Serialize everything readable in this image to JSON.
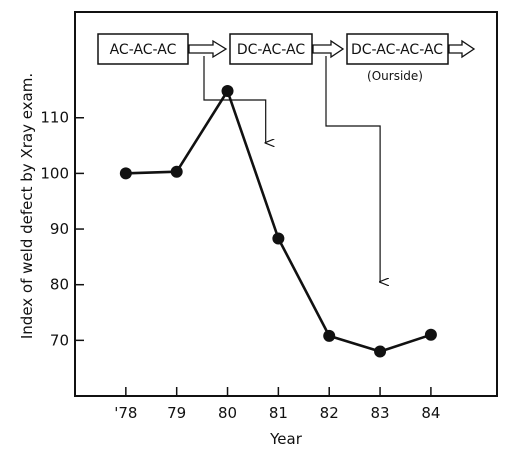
{
  "chart_data": {
    "type": "line",
    "title": "",
    "xlabel": "Year",
    "ylabel": "Index of weld defect by Xray exam.",
    "categories": [
      "'78",
      "79",
      "80",
      "81",
      "82",
      "83",
      "84"
    ],
    "x": [
      78,
      79,
      80,
      81,
      82,
      83,
      84
    ],
    "values": [
      100,
      100.3,
      114.8,
      88.3,
      70.8,
      68,
      71
    ],
    "y_ticks": [
      70,
      80,
      90,
      100,
      110
    ],
    "y_tick_labels": [
      "70",
      "80",
      "90",
      "100",
      "110"
    ],
    "xlim": [
      77,
      85.3
    ],
    "ylim": [
      60,
      129
    ],
    "grid": false,
    "annotations": {
      "processes": [
        {
          "label": "AC-AC-AC",
          "note": "",
          "arrow_year": 80.75,
          "arrow_end_value": 105.5
        },
        {
          "label": "DC-AC-AC",
          "note": "",
          "arrow_year": 83,
          "arrow_end_value": 80.5
        },
        {
          "label": "DC-AC-AC-AC",
          "note": "(Ourside)"
        }
      ]
    }
  }
}
